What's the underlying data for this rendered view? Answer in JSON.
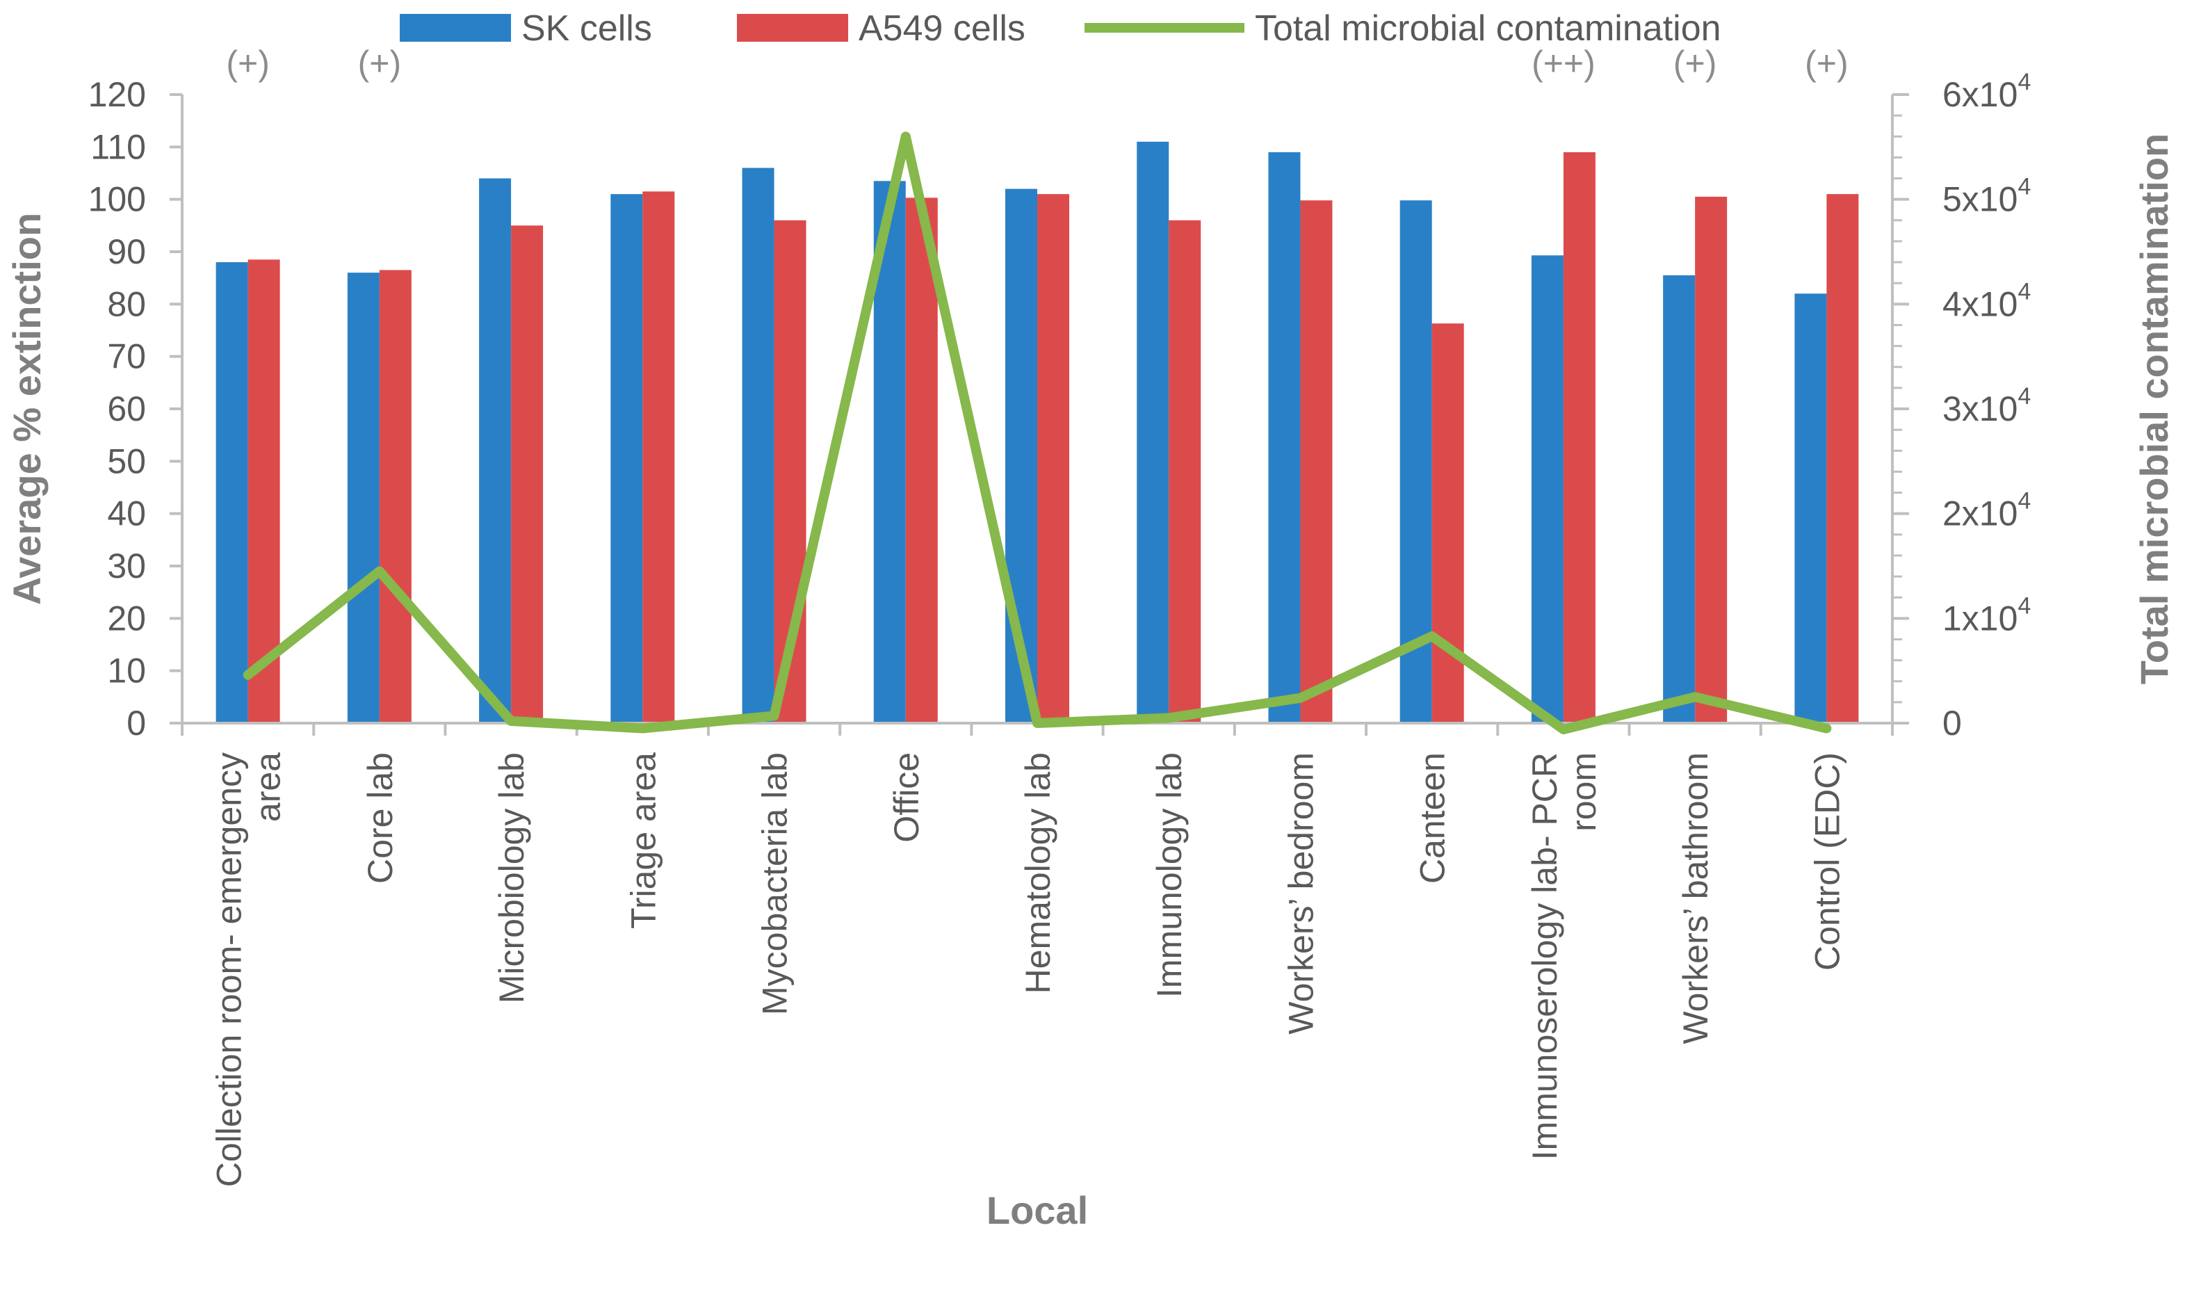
{
  "chart_data": {
    "type": "bar",
    "title": "",
    "categories": [
      "Collection room- emergency area",
      "Core lab",
      "Microbiology lab",
      "Triage area",
      "Mycobacteria lab",
      "Office",
      "Hematology lab",
      "Immunology lab",
      "Workers’ bedroom",
      "Canteen",
      "Immunoserology lab- PCR room",
      "Workers’ bathroom",
      "Control (EDC)"
    ],
    "category_lines": [
      [
        "Collection room- emergency",
        "area"
      ],
      [
        "Core lab"
      ],
      [
        "Microbiology lab"
      ],
      [
        "Triage area"
      ],
      [
        "Mycobacteria lab"
      ],
      [
        "Office"
      ],
      [
        "Hematology lab"
      ],
      [
        "Immunology lab"
      ],
      [
        "Workers’ bedroom"
      ],
      [
        "Canteen"
      ],
      [
        "Immunoserology lab- PCR",
        "room"
      ],
      [
        "Workers’ bathroom"
      ],
      [
        "Control (EDC)"
      ]
    ],
    "series": [
      {
        "name": "SK cells",
        "kind": "bar",
        "axis": "left",
        "color": "#2a80c6",
        "values": [
          88,
          86,
          104,
          101,
          106,
          103.5,
          102,
          111,
          109,
          99.8,
          89.3,
          85.5,
          82
        ]
      },
      {
        "name": "A549 cells",
        "kind": "bar",
        "axis": "left",
        "color": "#dc4b4b",
        "values": [
          88.5,
          86.5,
          95,
          101.5,
          96,
          100.3,
          101,
          96,
          99.8,
          76.3,
          109,
          100.5,
          101
        ]
      },
      {
        "name": "Total microbial contamination",
        "kind": "line",
        "axis": "right",
        "color": "#86b84b",
        "values": [
          4600,
          14500,
          200,
          -500,
          700,
          56000,
          0,
          500,
          2400,
          8300,
          -600,
          2500,
          -500
        ]
      }
    ],
    "annotations": [
      "(+)",
      "(+)",
      "",
      "",
      "",
      "",
      "",
      "",
      "",
      "",
      "(++)",
      "(+)",
      "(+)"
    ],
    "xlabel": "Local",
    "ylabel": "Average % extinction",
    "y2label": "Total microbial contamination",
    "ylim": [
      0,
      120
    ],
    "yticks": [
      0,
      10,
      20,
      30,
      40,
      50,
      60,
      70,
      80,
      90,
      100,
      110,
      120
    ],
    "y2lim": [
      0,
      60000
    ],
    "y2ticks": [
      {
        "value": 0,
        "base": "0",
        "exp": ""
      },
      {
        "value": 10000,
        "base": "1x10",
        "exp": "4"
      },
      {
        "value": 20000,
        "base": "2x10",
        "exp": "4"
      },
      {
        "value": 30000,
        "base": "3x10",
        "exp": "4"
      },
      {
        "value": 40000,
        "base": "4x10",
        "exp": "4"
      },
      {
        "value": 50000,
        "base": "5x10",
        "exp": "4"
      },
      {
        "value": 60000,
        "base": "6x10",
        "exp": "4"
      }
    ],
    "legend_position": "top",
    "grid": false
  }
}
